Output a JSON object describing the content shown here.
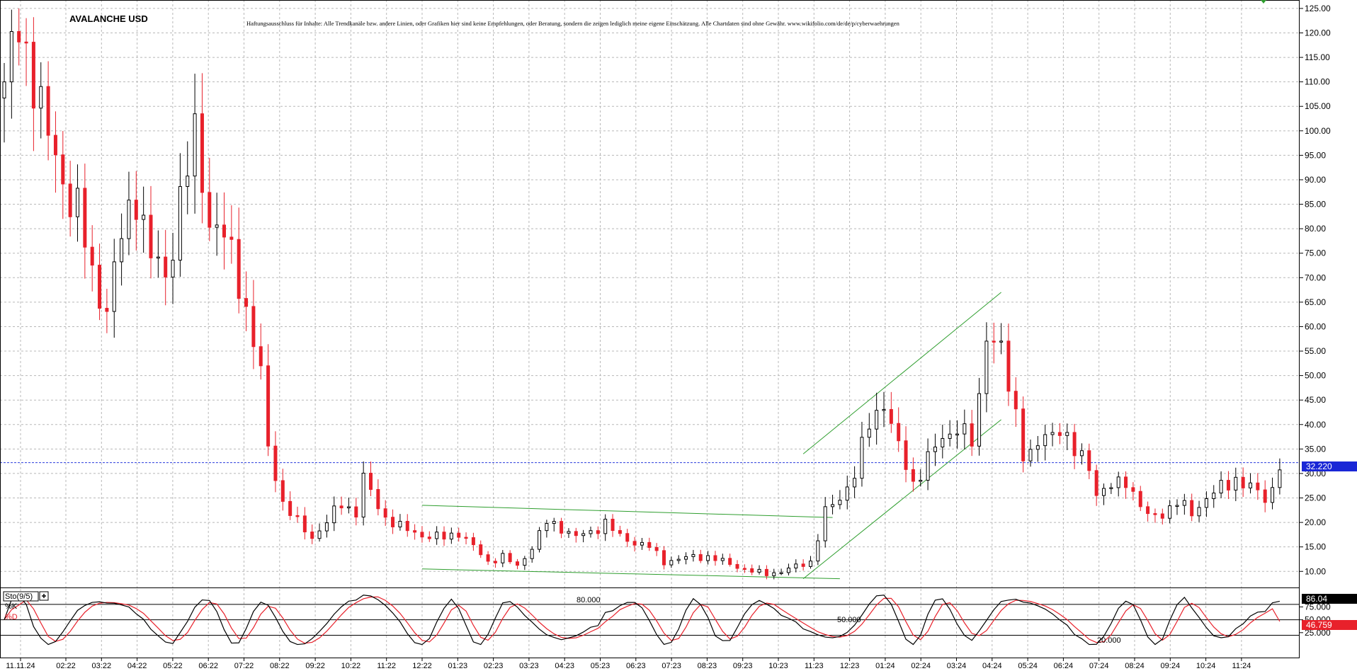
{
  "chart_data": [
    {
      "type": "candlestick",
      "title": "AVALANCHE USD",
      "disclaimer": "Haftungsausschluss für Inhalte: Alle Trendkanäle bzw. andere Linien, oder Grafiken hier sind keine Empfehlungen, oder Beratung, sondern die zeigen lediglich meine eigene Einschätzung. Alle Chartdaten sind ohne Gewähr. www.wikifolio.com/de/de/p/cyberwaehrungen",
      "ylim": [
        7,
        126
      ],
      "y_ticks": [
        10,
        15,
        20,
        25,
        30,
        35,
        40,
        45,
        50,
        55,
        60,
        65,
        70,
        75,
        80,
        85,
        90,
        95,
        100,
        105,
        110,
        115,
        120,
        125
      ],
      "y_tick_labels": [
        "10.00",
        "15.00",
        "20.00",
        "25.00",
        "30.00",
        "35.00",
        "40.00",
        "45.00",
        "50.00",
        "55.00",
        "60.00",
        "65.00",
        "70.00",
        "75.00",
        "80.00",
        "85.00",
        "90.00",
        "95.00",
        "100.00",
        "105.00",
        "110.00",
        "115.00",
        "120.00",
        "125.00"
      ],
      "x_tick_labels": [
        "11.11.24",
        "02:22",
        "03:22",
        "04:22",
        "05:22",
        "06:22",
        "07:22",
        "08:22",
        "09:22",
        "10:22",
        "11:22",
        "12:22",
        "01:23",
        "02:23",
        "03:23",
        "04:23",
        "05:23",
        "06:23",
        "07:23",
        "08:23",
        "09:23",
        "10:23",
        "11:23",
        "12:23",
        "01:24",
        "02:24",
        "03:24",
        "04:24",
        "05:24",
        "06:24",
        "07:24",
        "08:24",
        "09:24",
        "10:24",
        "11:24"
      ],
      "last_price": 32.22,
      "last_price_label": "32.220",
      "grid": true,
      "price_path": [
        [
          0,
          110
        ],
        [
          2,
          120
        ],
        [
          4,
          112
        ],
        [
          6,
          98
        ],
        [
          8,
          90
        ],
        [
          10,
          84
        ],
        [
          12,
          70
        ],
        [
          14,
          64
        ],
        [
          16,
          78
        ],
        [
          18,
          88
        ],
        [
          20,
          74
        ],
        [
          22,
          70
        ],
        [
          24,
          86
        ],
        [
          26,
          98
        ],
        [
          27,
          91
        ],
        [
          28,
          82
        ],
        [
          30,
          78
        ],
        [
          32,
          70
        ],
        [
          34,
          57
        ],
        [
          35,
          50
        ],
        [
          36,
          35
        ],
        [
          37,
          30
        ],
        [
          38,
          24
        ],
        [
          40,
          20
        ],
        [
          42,
          17
        ],
        [
          44,
          20
        ],
        [
          46,
          24
        ],
        [
          47,
          23
        ],
        [
          48,
          22
        ],
        [
          49,
          29
        ],
        [
          50,
          26
        ],
        [
          52,
          21
        ],
        [
          54,
          19
        ],
        [
          56,
          18
        ],
        [
          58,
          17
        ],
        [
          60,
          17
        ],
        [
          62,
          18
        ],
        [
          64,
          15
        ],
        [
          66,
          12
        ],
        [
          68,
          13
        ],
        [
          70,
          11
        ],
        [
          72,
          15
        ],
        [
          74,
          20
        ],
        [
          76,
          19
        ],
        [
          78,
          17
        ],
        [
          80,
          18
        ],
        [
          82,
          20
        ],
        [
          84,
          17
        ],
        [
          86,
          16
        ],
        [
          88,
          15
        ],
        [
          90,
          12
        ],
        [
          92,
          12.5
        ],
        [
          94,
          13
        ],
        [
          96,
          13
        ],
        [
          98,
          12
        ],
        [
          100,
          11
        ],
        [
          102,
          10
        ],
        [
          104,
          9.5
        ],
        [
          106,
          10
        ],
        [
          108,
          11
        ],
        [
          110,
          12
        ],
        [
          111,
          17
        ],
        [
          112,
          22
        ],
        [
          114,
          25
        ],
        [
          116,
          30
        ],
        [
          118,
          40
        ],
        [
          120,
          45
        ],
        [
          122,
          35
        ],
        [
          124,
          28
        ],
        [
          126,
          33
        ],
        [
          128,
          37
        ],
        [
          130,
          40
        ],
        [
          132,
          36
        ],
        [
          133,
          45
        ],
        [
          134,
          60
        ],
        [
          136,
          55
        ],
        [
          137,
          47
        ],
        [
          138,
          42
        ],
        [
          139,
          35
        ],
        [
          140,
          34
        ],
        [
          142,
          37
        ],
        [
          144,
          40
        ],
        [
          146,
          34
        ],
        [
          148,
          32
        ],
        [
          149,
          26
        ],
        [
          151,
          27
        ],
        [
          153,
          29
        ],
        [
          154,
          26
        ],
        [
          156,
          21
        ],
        [
          158,
          22
        ],
        [
          160,
          24
        ],
        [
          162,
          22
        ],
        [
          164,
          25
        ],
        [
          166,
          27
        ],
        [
          168,
          29
        ],
        [
          170,
          27
        ],
        [
          172,
          25
        ],
        [
          173,
          27
        ],
        [
          174,
          32
        ]
      ],
      "trend_lines": [
        {
          "name": "upper-wedge-line",
          "from": [
            57,
            23.5
          ],
          "to": [
            113,
            21
          ]
        },
        {
          "name": "lower-wedge-line",
          "from": [
            57,
            10.5
          ],
          "to": [
            114,
            8.5
          ]
        },
        {
          "name": "upper-channel-line",
          "from": [
            109,
            34
          ],
          "to": [
            136,
            67
          ]
        },
        {
          "name": "lower-channel-line",
          "from": [
            109,
            8.5
          ],
          "to": [
            136,
            41
          ]
        }
      ]
    },
    {
      "type": "line",
      "indicator": "Sto(9/5)",
      "ylim": [
        0,
        110
      ],
      "y_tick_labels": [
        "25.000",
        "50.000",
        "75.000"
      ],
      "level_labels": [
        "80.000",
        "50.000",
        "20.000"
      ],
      "series": [
        {
          "name": "%K",
          "color": "#000000",
          "last_value": 86.04,
          "last_label": "86.04"
        },
        {
          "name": "%D",
          "color": "#e8212b",
          "last_value": 46.759,
          "last_label": "46.759"
        }
      ]
    }
  ]
}
